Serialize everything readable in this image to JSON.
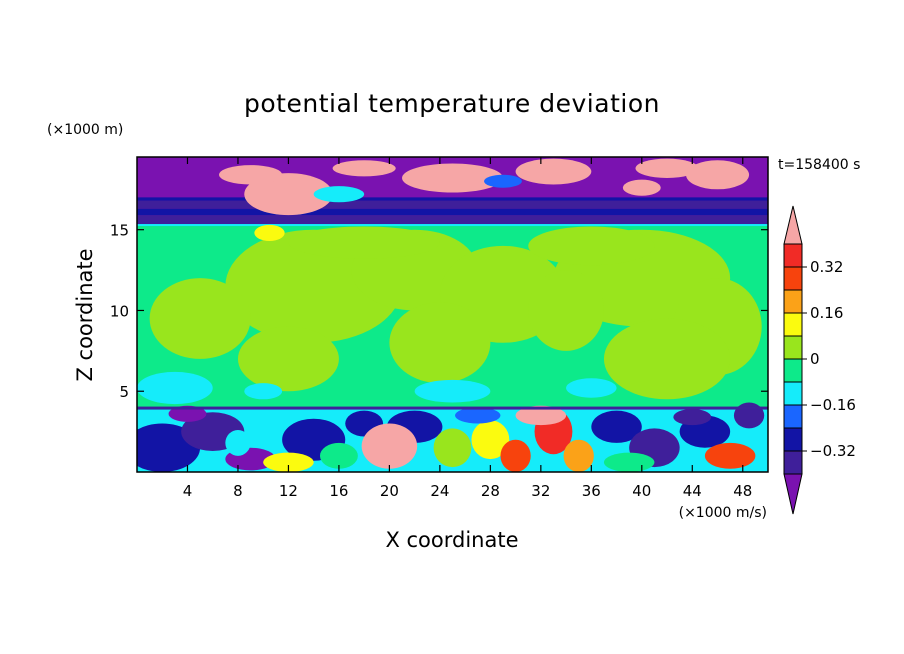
{
  "chart_data": {
    "type": "heatmap",
    "title": "potential temperature deviation",
    "xlabel": "X coordinate",
    "ylabel": "Z coordinate",
    "x_unit": "(×1000 m/s)",
    "y_unit": "(×1000 m)",
    "time_label": "t=158400 s",
    "xlim": [
      0,
      50
    ],
    "ylim": [
      0,
      19.5
    ],
    "x_ticks": [
      4,
      8,
      12,
      16,
      20,
      24,
      28,
      32,
      36,
      40,
      44,
      48
    ],
    "y_ticks": [
      5,
      10,
      15
    ],
    "colorbar": {
      "levels": [
        -0.4,
        -0.32,
        -0.24,
        -0.16,
        -0.08,
        0,
        0.08,
        0.16,
        0.24,
        0.32,
        0.4
      ],
      "tick_labels": [
        "0.32",
        "0.16",
        "0",
        "−0.16",
        "−0.32"
      ],
      "tick_values": [
        0.32,
        0.16,
        0,
        -0.16,
        -0.32
      ],
      "colors": [
        "#7a12b0",
        "#3f1f9a",
        "#1214a5",
        "#1a66ff",
        "#15ecfa",
        "#0dea8a",
        "#99e51d",
        "#fbfb0f",
        "#fba218",
        "#f7430d",
        "#f12b26",
        "#f6a6a6"
      ],
      "extend": "both"
    },
    "regions": {
      "lower_layer_z": [
        0,
        4
      ],
      "lower_layer_values": "mixed -0.4 to >0.4",
      "middle_layer_z": [
        4,
        15.3
      ],
      "middle_layer_values": "about -0.08 to 0.08",
      "upper_layer_z": [
        15.3,
        19.5
      ],
      "upper_layer_values": "bands below -0.32 with patches above 0.4"
    }
  }
}
